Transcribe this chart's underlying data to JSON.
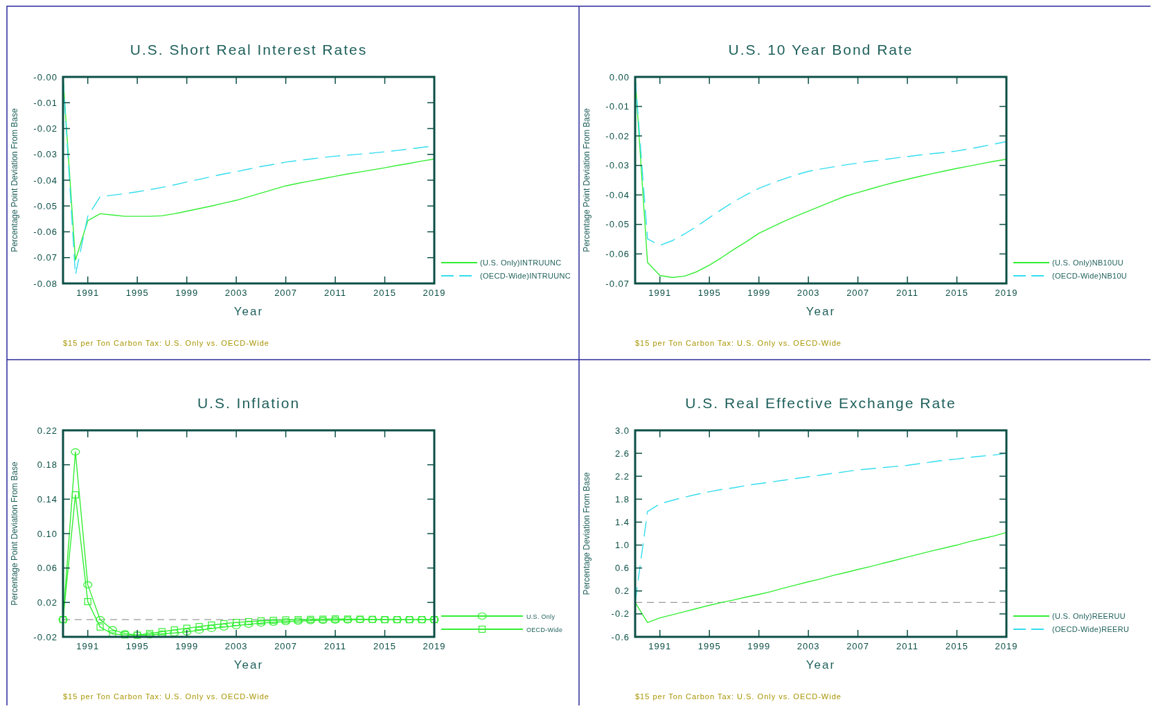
{
  "chart_data": [
    {
      "type": "line",
      "title": "U.S. Short Real Interest Rates",
      "xlabel": "Year",
      "ylabel": "Percentage Point Deviation From Base",
      "x": [
        1989,
        1990,
        1991,
        1992,
        1993,
        1994,
        1995,
        1996,
        1997,
        1998,
        1999,
        2000,
        2001,
        2002,
        2003,
        2004,
        2005,
        2006,
        2007,
        2008,
        2009,
        2010,
        2011,
        2012,
        2013,
        2014,
        2015,
        2016,
        2017,
        2018,
        2019
      ],
      "xlim": [
        1989,
        2019
      ],
      "xticks": [
        1991,
        1995,
        1999,
        2003,
        2007,
        2011,
        2015,
        2019
      ],
      "ylim": [
        -0.08,
        0
      ],
      "yticks": [
        {
          "value": 0,
          "label": "-0.00"
        },
        -0.01,
        -0.02,
        -0.03,
        -0.04,
        -0.05,
        -0.06,
        -0.07,
        -0.08
      ],
      "legend": "right",
      "annotations": [
        "$15 per Ton Carbon Tax: U.S. Only vs. OECD-Wide"
      ],
      "series": [
        {
          "name": "(U.S. Only)INTRUUNC",
          "color": "#33ee33",
          "line_style": "solid",
          "values": [
            0,
            -0.071,
            -0.0557,
            -0.053,
            -0.0535,
            -0.054,
            -0.054,
            -0.054,
            -0.0538,
            -0.053,
            -0.052,
            -0.051,
            -0.05,
            -0.0489,
            -0.0478,
            -0.0464,
            -0.045,
            -0.0436,
            -0.0422,
            -0.0412,
            -0.0403,
            -0.0394,
            -0.0385,
            -0.0376,
            -0.0368,
            -0.036,
            -0.0352,
            -0.0343,
            -0.0335,
            -0.0326,
            -0.0318
          ]
        },
        {
          "name": "(OECD-Wide)INTRUUNC",
          "color": "#33ddee",
          "line_style": "dashed",
          "values": [
            0,
            -0.0767,
            -0.054,
            -0.0464,
            -0.0458,
            -0.0452,
            -0.0445,
            -0.0437,
            -0.0428,
            -0.0418,
            -0.0407,
            -0.0397,
            -0.0386,
            -0.0376,
            -0.0367,
            -0.0357,
            -0.0347,
            -0.0339,
            -0.033,
            -0.0324,
            -0.0318,
            -0.0312,
            -0.0307,
            -0.0303,
            -0.0299,
            -0.0295,
            -0.029,
            -0.0285,
            -0.0279,
            -0.0273,
            -0.0267
          ]
        }
      ]
    },
    {
      "type": "line",
      "title": "U.S. 10 Year Bond Rate",
      "xlabel": "Year",
      "ylabel": "Percentage Point Deviation From Base",
      "x": [
        1989,
        1990,
        1991,
        1992,
        1993,
        1994,
        1995,
        1996,
        1997,
        1998,
        1999,
        2000,
        2001,
        2002,
        2003,
        2004,
        2005,
        2006,
        2007,
        2008,
        2009,
        2010,
        2011,
        2012,
        2013,
        2014,
        2015,
        2016,
        2017,
        2018,
        2019
      ],
      "xlim": [
        1989,
        2019
      ],
      "xticks": [
        1991,
        1995,
        1999,
        2003,
        2007,
        2011,
        2015,
        2019
      ],
      "ylim": [
        -0.07,
        0
      ],
      "yticks": [
        {
          "value": 0,
          "label": "0.00"
        },
        -0.01,
        -0.02,
        -0.03,
        -0.04,
        -0.05,
        -0.06,
        -0.07
      ],
      "legend": "right",
      "annotations": [
        "$15 per Ton Carbon Tax: U.S. Only vs. OECD-Wide"
      ],
      "series": [
        {
          "name": "(U.S. Only)NB10UU",
          "color": "#33ee33",
          "line_style": "solid",
          "values": [
            0,
            -0.0629,
            -0.0673,
            -0.068,
            -0.0675,
            -0.066,
            -0.0638,
            -0.0612,
            -0.0584,
            -0.0558,
            -0.053,
            -0.051,
            -0.049,
            -0.0472,
            -0.0455,
            -0.0438,
            -0.0421,
            -0.0404,
            -0.0392,
            -0.038,
            -0.0368,
            -0.0357,
            -0.0347,
            -0.0337,
            -0.0328,
            -0.0319,
            -0.031,
            -0.0302,
            -0.0294,
            -0.0286,
            -0.0279
          ]
        },
        {
          "name": "(OECD-Wide)NB10U",
          "color": "#33ddee",
          "line_style": "dashed",
          "values": [
            0,
            -0.0549,
            -0.0571,
            -0.0555,
            -0.0532,
            -0.0506,
            -0.0477,
            -0.0449,
            -0.0422,
            -0.0399,
            -0.0378,
            -0.0361,
            -0.0346,
            -0.0332,
            -0.032,
            -0.0312,
            -0.0305,
            -0.0298,
            -0.0292,
            -0.0286,
            -0.0281,
            -0.0275,
            -0.027,
            -0.0265,
            -0.026,
            -0.0256,
            -0.0251,
            -0.0244,
            -0.0236,
            -0.0228,
            -0.0219
          ]
        }
      ]
    },
    {
      "type": "line",
      "title": "U.S. Inflation",
      "xlabel": "Year",
      "ylabel": "Percentage Point Deviation From Base",
      "x": [
        1989,
        1990,
        1991,
        1992,
        1993,
        1994,
        1995,
        1996,
        1997,
        1998,
        1999,
        2000,
        2001,
        2002,
        2003,
        2004,
        2005,
        2006,
        2007,
        2008,
        2009,
        2010,
        2011,
        2012,
        2013,
        2014,
        2015,
        2016,
        2017,
        2018,
        2019
      ],
      "xlim": [
        1989,
        2019
      ],
      "xticks": [
        1991,
        1995,
        1999,
        2003,
        2007,
        2011,
        2015,
        2019
      ],
      "ylim": [
        -0.02,
        0.22
      ],
      "yticks": [
        -0.02,
        0.02,
        0.06,
        {
          "value": 0.1,
          "label": "0.10"
        },
        0.14,
        0.18,
        0.22
      ],
      "legend": "right",
      "annotations": [
        "$15 per Ton Carbon Tax: U.S. Only vs. OECD-Wide"
      ],
      "ref_lines": [
        {
          "axis": "y",
          "value": 0,
          "color": "#999999",
          "line_style": "dashed"
        }
      ],
      "series": [
        {
          "name": "U.S. Only",
          "color": "#33ee33",
          "line_style": "solid",
          "marker": "circle",
          "values": [
            0,
            0.195,
            0.0405,
            0,
            -0.0117,
            -0.0163,
            -0.018,
            -0.0178,
            -0.0166,
            -0.0155,
            -0.0143,
            -0.0123,
            -0.0103,
            -0.0086,
            -0.0069,
            -0.0054,
            -0.004,
            -0.0031,
            -0.0023,
            -0.0017,
            -0.0011,
            -0.0008,
            -0.0006,
            -0.0003,
            0,
            0,
            0,
            0,
            0,
            0,
            0
          ]
        },
        {
          "name": "OECD-Wide",
          "color": "#33ee33",
          "line_style": "solid",
          "marker": "square",
          "values": [
            0,
            0.145,
            0.021,
            -0.0086,
            -0.0166,
            -0.0177,
            -0.018,
            -0.0162,
            -0.014,
            -0.012,
            -0.01,
            -0.0081,
            -0.0063,
            -0.0047,
            -0.0032,
            -0.0023,
            -0.0015,
            -0.0009,
            -0.0003,
            0,
            0.0003,
            0.0005,
            0.0008,
            0.0006,
            0.0005,
            0.0003,
            0,
            0,
            0,
            0,
            0
          ]
        }
      ]
    },
    {
      "type": "line",
      "title": "U.S. Real Effective Exchange Rate",
      "xlabel": "Year",
      "ylabel": "Percentage Deviation From Base",
      "x": [
        1989,
        1990,
        1991,
        1992,
        1993,
        1994,
        1995,
        1996,
        1997,
        1998,
        1999,
        2000,
        2001,
        2002,
        2003,
        2004,
        2005,
        2006,
        2007,
        2008,
        2009,
        2010,
        2011,
        2012,
        2013,
        2014,
        2015,
        2016,
        2017,
        2018,
        2019
      ],
      "xlim": [
        1989,
        2019
      ],
      "xticks": [
        1991,
        1995,
        1999,
        2003,
        2007,
        2011,
        2015,
        2019
      ],
      "ylim": [
        -0.6,
        3
      ],
      "yticks": [
        -0.6,
        -0.2,
        0.2,
        0.6,
        {
          "value": 1,
          "label": "1.0"
        },
        1.4,
        1.8,
        2.2,
        2.6,
        {
          "value": 3,
          "label": "3.0"
        }
      ],
      "legend": "right",
      "annotations": [
        "$15 per Ton Carbon Tax: U.S. Only vs. OECD-Wide"
      ],
      "ref_lines": [
        {
          "axis": "y",
          "value": 0,
          "color": "#999999",
          "line_style": "dashed"
        }
      ],
      "series": [
        {
          "name": "(U.S. Only)REERUU",
          "color": "#33ee33",
          "line_style": "solid",
          "values": [
            0,
            -0.35,
            -0.27,
            -0.215,
            -0.16,
            -0.105,
            -0.05,
            0,
            0.045,
            0.095,
            0.14,
            0.19,
            0.25,
            0.305,
            0.36,
            0.41,
            0.47,
            0.52,
            0.575,
            0.625,
            0.68,
            0.735,
            0.79,
            0.845,
            0.9,
            0.95,
            1.0,
            1.06,
            1.11,
            1.16,
            1.22
          ]
        },
        {
          "name": "(OECD-Wide)REERU",
          "color": "#33ddee",
          "line_style": "dashed",
          "values": [
            0,
            1.585,
            1.72,
            1.78,
            1.835,
            1.885,
            1.93,
            1.97,
            2.0,
            2.04,
            2.07,
            2.1,
            2.13,
            2.16,
            2.19,
            2.22,
            2.25,
            2.28,
            2.31,
            2.33,
            2.35,
            2.37,
            2.39,
            2.42,
            2.45,
            2.48,
            2.5,
            2.53,
            2.55,
            2.57,
            2.6
          ]
        }
      ]
    }
  ]
}
